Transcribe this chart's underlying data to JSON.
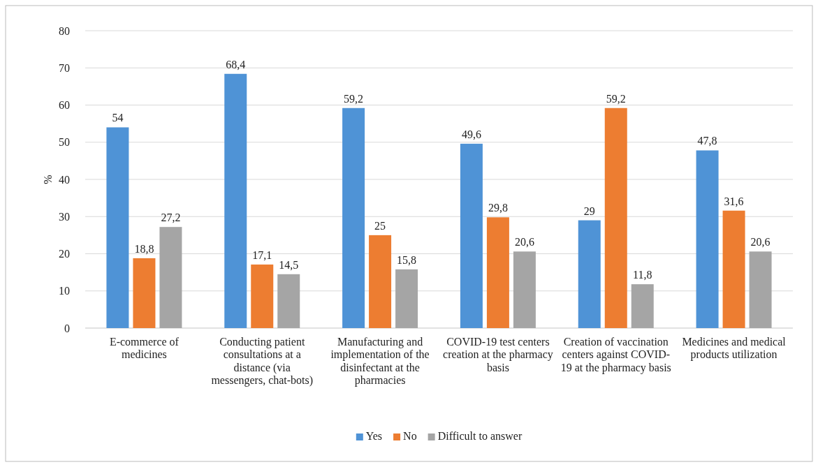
{
  "chart_data": {
    "type": "bar",
    "ylabel": "%",
    "categories": [
      "E-commerce of medicines",
      "Conducting patient consultations at a distance (via messengers, chat-bots)",
      "Manufacturing and implementation of the disinfectant at the pharmacies",
      "COVID-19 test centers creation at the pharmacy basis",
      "Creation of vaccination centers against COVID-19 at the pharmacy basis",
      "Medicines and medical products utilization"
    ],
    "series": [
      {
        "name": "Yes",
        "color": "#4f93d6",
        "values": [
          54,
          68.4,
          59.2,
          49.6,
          29,
          47.8
        ],
        "value_labels": [
          "54",
          "68,4",
          "59,2",
          "49,6",
          "29",
          "47,8"
        ]
      },
      {
        "name": "No",
        "color": "#ed7d31",
        "values": [
          18.8,
          17.1,
          25,
          29.8,
          59.2,
          31.6
        ],
        "value_labels": [
          "18,8",
          "17,1",
          "25",
          "29,8",
          "59,2",
          "31,6"
        ]
      },
      {
        "name": "Difficult to answer",
        "color": "#a5a5a5",
        "values": [
          27.2,
          14.5,
          15.8,
          20.6,
          11.8,
          20.6
        ],
        "value_labels": [
          "27,2",
          "14,5",
          "15,8",
          "20,6",
          "11,8",
          "20,6"
        ]
      }
    ],
    "ylim": [
      0,
      80
    ],
    "yticks": [
      0,
      10,
      20,
      30,
      40,
      50,
      60,
      70,
      80
    ],
    "grid": "y",
    "legend": "bottom"
  }
}
